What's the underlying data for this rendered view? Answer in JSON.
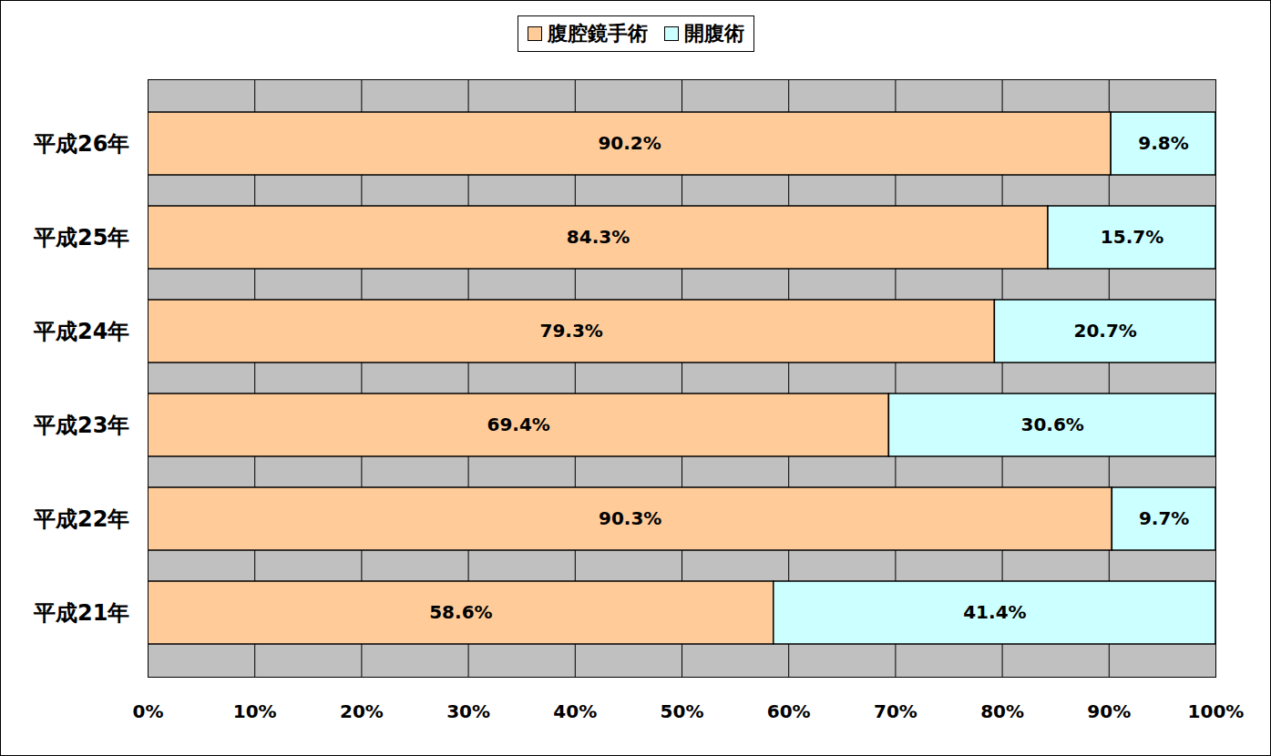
{
  "chart_data": {
    "type": "bar",
    "orientation": "horizontal",
    "stacked": true,
    "data_labels": true,
    "grid": true,
    "legend": "top",
    "categories": [
      "平成26年",
      "平成25年",
      "平成24年",
      "平成23年",
      "平成22年",
      "平成21年"
    ],
    "series": [
      {
        "name": "腹腔鏡手術",
        "color": "#ffcc99",
        "values": [
          90.2,
          84.3,
          79.3,
          69.4,
          90.3,
          58.6
        ],
        "value_labels": [
          "90.2%",
          "84.3%",
          "79.3%",
          "69.4%",
          "90.3%",
          "58.6%"
        ]
      },
      {
        "name": "開腹術",
        "color": "#ccffff",
        "values": [
          9.8,
          15.7,
          20.7,
          30.6,
          9.7,
          41.4
        ],
        "value_labels": [
          "9.8%",
          "15.7%",
          "20.7%",
          "30.6%",
          "9.7%",
          "41.4%"
        ]
      }
    ],
    "xlim": [
      0,
      100
    ],
    "xticks": [
      {
        "value": 0,
        "label": "0%"
      },
      {
        "value": 10,
        "label": "10%"
      },
      {
        "value": 20,
        "label": "20%"
      },
      {
        "value": 30,
        "label": "30%"
      },
      {
        "value": 40,
        "label": "40%"
      },
      {
        "value": 50,
        "label": "50%"
      },
      {
        "value": 60,
        "label": "60%"
      },
      {
        "value": 70,
        "label": "70%"
      },
      {
        "value": 80,
        "label": "80%"
      },
      {
        "value": 90,
        "label": "90%"
      },
      {
        "value": 100,
        "label": "100%"
      }
    ]
  }
}
